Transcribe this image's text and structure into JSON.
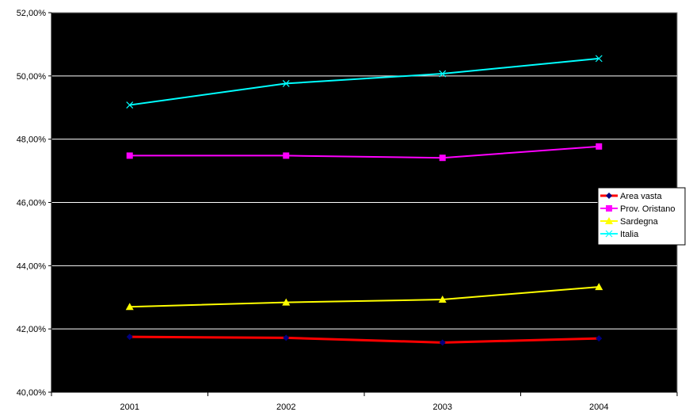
{
  "chart_data": {
    "type": "line",
    "title": "",
    "xlabel": "",
    "ylabel": "",
    "categories": [
      "2001",
      "2002",
      "2003",
      "2004"
    ],
    "ylim": [
      40,
      52
    ],
    "y_ticks": [
      40,
      42,
      44,
      46,
      48,
      50,
      52
    ],
    "y_tick_labels": [
      "40,00%",
      "42,00%",
      "44,00%",
      "46,00%",
      "48,00%",
      "50,00%",
      "52,00%"
    ],
    "grid": true,
    "plot_background": "#000000",
    "legend_position": "right",
    "series": [
      {
        "name": "Area vasta",
        "color": "#ff0000",
        "marker": "diamond",
        "marker_color": "#000080",
        "values": [
          41.75,
          41.72,
          41.57,
          41.7
        ]
      },
      {
        "name": "Prov. Oristano",
        "color": "#ff00ff",
        "marker": "square",
        "marker_color": "#ff00ff",
        "values": [
          47.48,
          47.48,
          47.41,
          47.77
        ]
      },
      {
        "name": "Sardegna",
        "color": "#ffff00",
        "marker": "triangle",
        "marker_color": "#ffff00",
        "values": [
          42.7,
          42.84,
          42.93,
          43.33
        ]
      },
      {
        "name": "Italia",
        "color": "#00ffff",
        "marker": "x",
        "marker_color": "#00ffff",
        "values": [
          49.08,
          49.76,
          50.07,
          50.55
        ]
      }
    ]
  }
}
